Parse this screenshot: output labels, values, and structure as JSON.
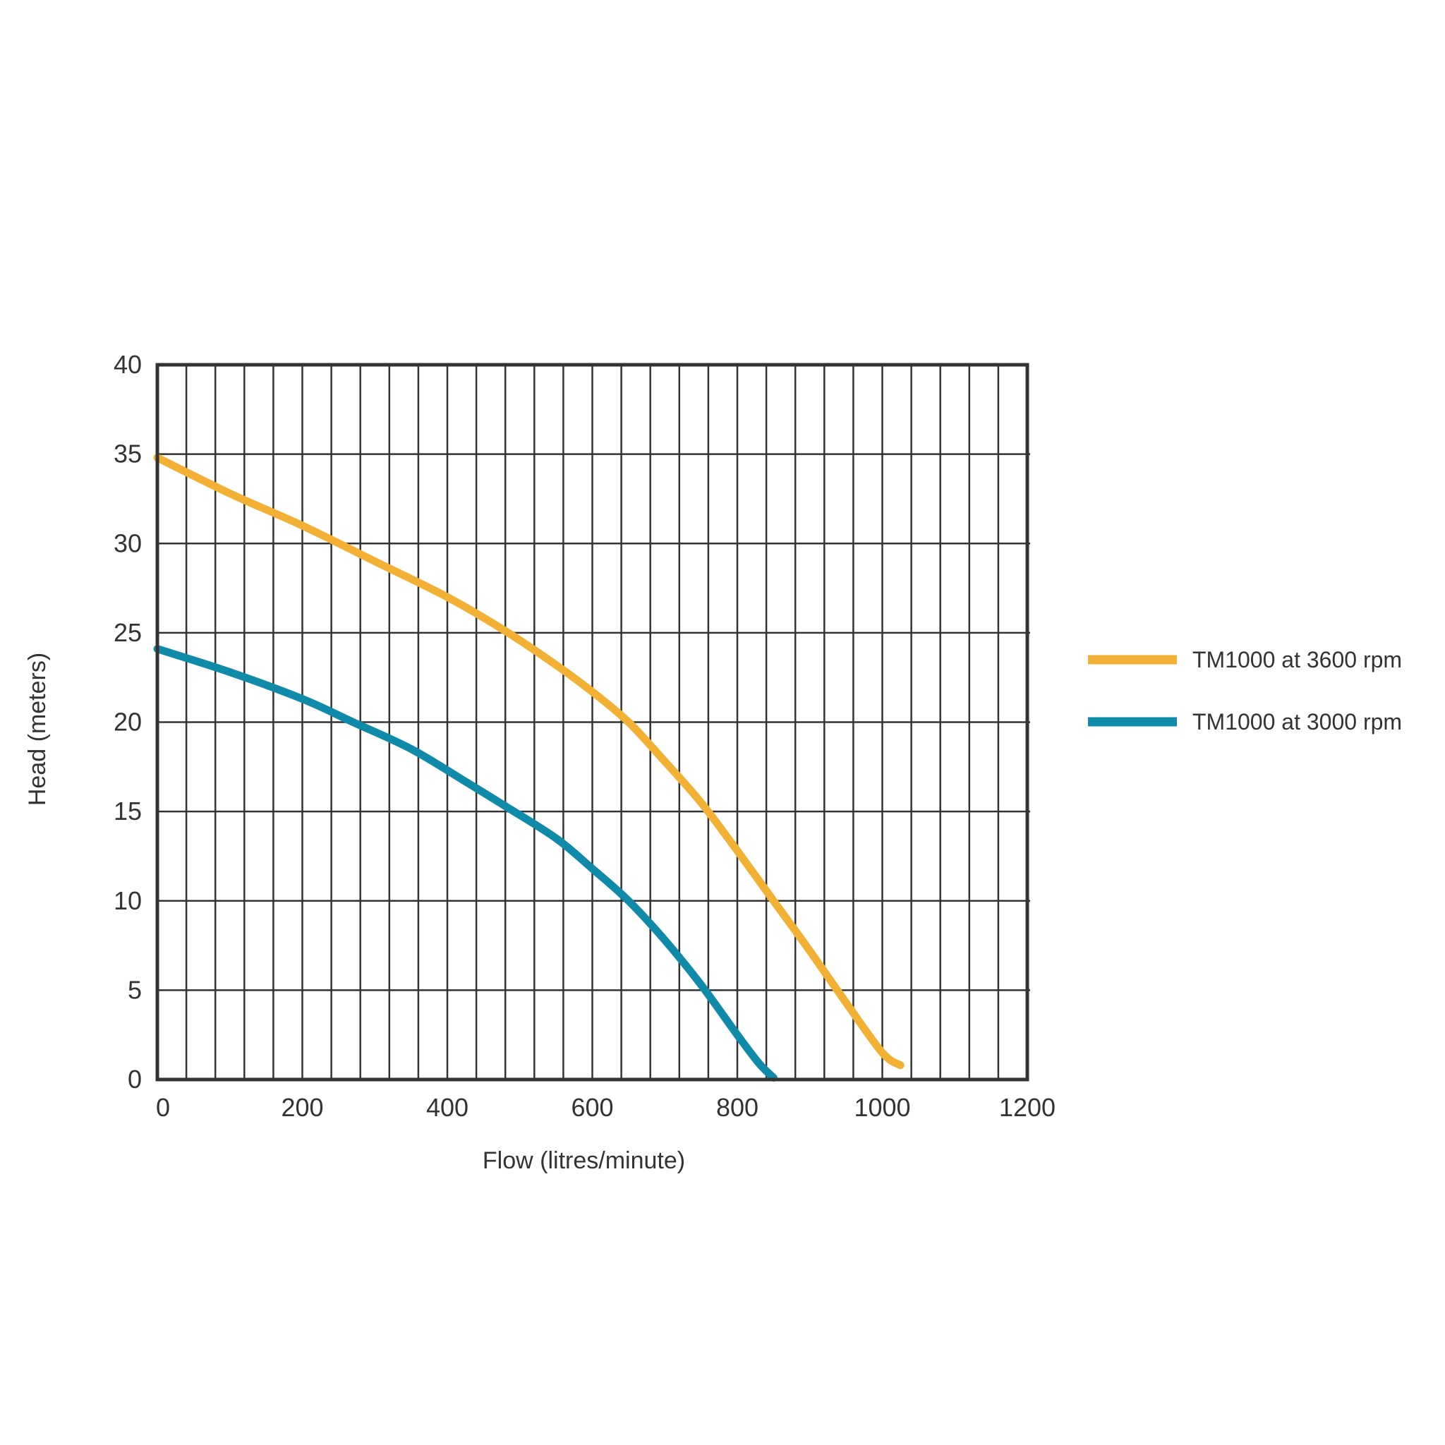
{
  "chart_data": {
    "type": "line",
    "title": "",
    "xlabel": "Flow (litres/minute)",
    "ylabel": "Head (meters)",
    "xlim": [
      0,
      1200
    ],
    "ylim": [
      0,
      40
    ],
    "x_ticks": [
      "0",
      "200",
      "400",
      "600",
      "800",
      "1000",
      "1200"
    ],
    "y_ticks": [
      "0",
      "5",
      "10",
      "15",
      "20",
      "25",
      "30",
      "35",
      "40"
    ],
    "grid": true,
    "legend_position": "right",
    "series": [
      {
        "name": "TM1000 at 3600 rpm",
        "color": "#F2B134",
        "x": [
          0,
          100,
          200,
          300,
          400,
          480,
          550,
          600,
          650,
          700,
          750,
          800,
          850,
          900,
          950,
          1000,
          1025
        ],
        "y": [
          34.8,
          32.8,
          31.0,
          29.0,
          27.0,
          25.1,
          23.2,
          21.7,
          20.0,
          17.8,
          15.5,
          12.8,
          10.0,
          7.2,
          4.3,
          1.5,
          0.8
        ]
      },
      {
        "name": "TM1000 at 3000 rpm",
        "color": "#0F8AA8",
        "x": [
          0,
          100,
          200,
          270,
          350,
          420,
          480,
          550,
          600,
          650,
          700,
          750,
          800,
          830,
          850
        ],
        "y": [
          24.1,
          22.8,
          21.3,
          20.0,
          18.5,
          16.8,
          15.3,
          13.5,
          11.8,
          10.0,
          7.8,
          5.3,
          2.5,
          0.9,
          0.1
        ]
      }
    ]
  }
}
